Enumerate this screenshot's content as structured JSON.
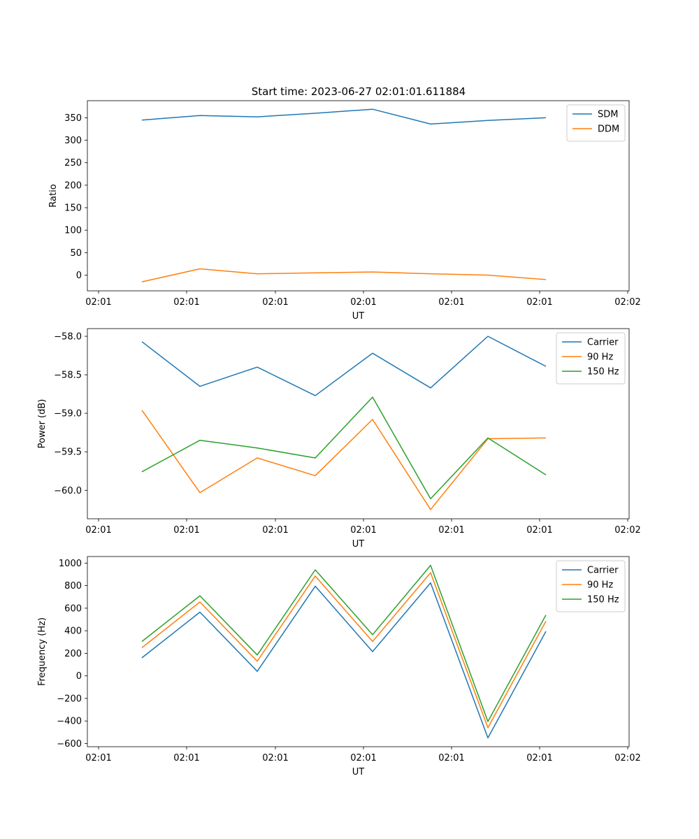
{
  "figure": {
    "title": "Start time: 2023-06-27 02:01:01.611884"
  },
  "chart_data": [
    {
      "type": "line",
      "xlabel": "UT",
      "ylabel": "Ratio",
      "x_tick_labels": [
        "02:01",
        "02:01",
        "02:01",
        "02:01",
        "02:01",
        "02:01",
        "02:02"
      ],
      "yticks": [
        0,
        50,
        100,
        150,
        200,
        250,
        300,
        350
      ],
      "y_tick_labels": [
        "0",
        "50",
        "100",
        "150",
        "200",
        "250",
        "300",
        "350"
      ],
      "ylim": [
        -35,
        388
      ],
      "legend_position": "upper right",
      "series": [
        {
          "name": "SDM",
          "color": "#1f77b4",
          "values": [
            345,
            355,
            352,
            360,
            369,
            336,
            344,
            350
          ]
        },
        {
          "name": "DDM",
          "color": "#ff7f0e",
          "values": [
            -15,
            14,
            3,
            5,
            7,
            3,
            0,
            -10
          ]
        }
      ]
    },
    {
      "type": "line",
      "xlabel": "UT",
      "ylabel": "Power (dB)",
      "x_tick_labels": [
        "02:01",
        "02:01",
        "02:01",
        "02:01",
        "02:01",
        "02:01",
        "02:02"
      ],
      "yticks": [
        -60.0,
        -59.5,
        -59.0,
        -58.5,
        -58.0
      ],
      "y_tick_labels": [
        "−60.0",
        "−59.5",
        "−59.0",
        "−58.5",
        "−58.0"
      ],
      "ylim": [
        -60.37,
        -57.9
      ],
      "legend_position": "upper right",
      "series": [
        {
          "name": "Carrier",
          "color": "#1f77b4",
          "values": [
            -58.07,
            -58.65,
            -58.4,
            -58.77,
            -58.22,
            -58.67,
            -58.0,
            -58.39
          ]
        },
        {
          "name": "90 Hz",
          "color": "#ff7f0e",
          "values": [
            -58.96,
            -60.03,
            -59.58,
            -59.81,
            -59.08,
            -60.25,
            -59.33,
            -59.32
          ]
        },
        {
          "name": "150 Hz",
          "color": "#2ca02c",
          "values": [
            -59.76,
            -59.35,
            -59.45,
            -59.58,
            -58.79,
            -60.11,
            -59.32,
            -59.8
          ]
        }
      ]
    },
    {
      "type": "line",
      "xlabel": "UT",
      "ylabel": "Frequency (Hz)",
      "x_tick_labels": [
        "02:01",
        "02:01",
        "02:01",
        "02:01",
        "02:01",
        "02:01",
        "02:02"
      ],
      "yticks": [
        -600,
        -400,
        -200,
        0,
        200,
        400,
        600,
        800,
        1000
      ],
      "y_tick_labels": [
        "−600",
        "−400",
        "−200",
        "0",
        "200",
        "400",
        "600",
        "800",
        "1000"
      ],
      "ylim": [
        -628,
        1058
      ],
      "legend_position": "upper right",
      "series": [
        {
          "name": "Carrier",
          "color": "#1f77b4",
          "values": [
            160,
            565,
            40,
            795,
            215,
            825,
            -550,
            395
          ]
        },
        {
          "name": "90 Hz",
          "color": "#ff7f0e",
          "values": [
            250,
            655,
            130,
            885,
            305,
            915,
            -460,
            485
          ]
        },
        {
          "name": "150 Hz",
          "color": "#2ca02c",
          "values": [
            305,
            710,
            185,
            940,
            365,
            980,
            -405,
            540
          ]
        }
      ]
    }
  ]
}
